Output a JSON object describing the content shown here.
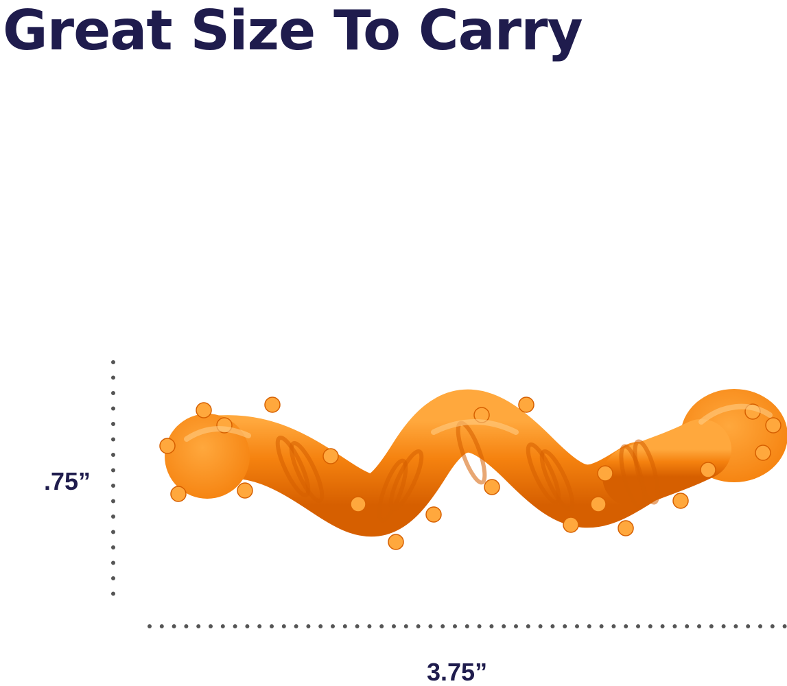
{
  "headline": {
    "text": "Great Size To Carry",
    "color": "#1f1c4d"
  },
  "dimensions": {
    "height_label": ".75”",
    "width_label": "3.75”",
    "label_color": "#1f1c4d",
    "dot_color": "#555555"
  },
  "product": {
    "name": "orange-wavy-chew-toy",
    "colors": {
      "main": "#f5820f",
      "light": "#ffa83d",
      "dark": "#d65f00",
      "highlight": "#ffd08a"
    }
  }
}
